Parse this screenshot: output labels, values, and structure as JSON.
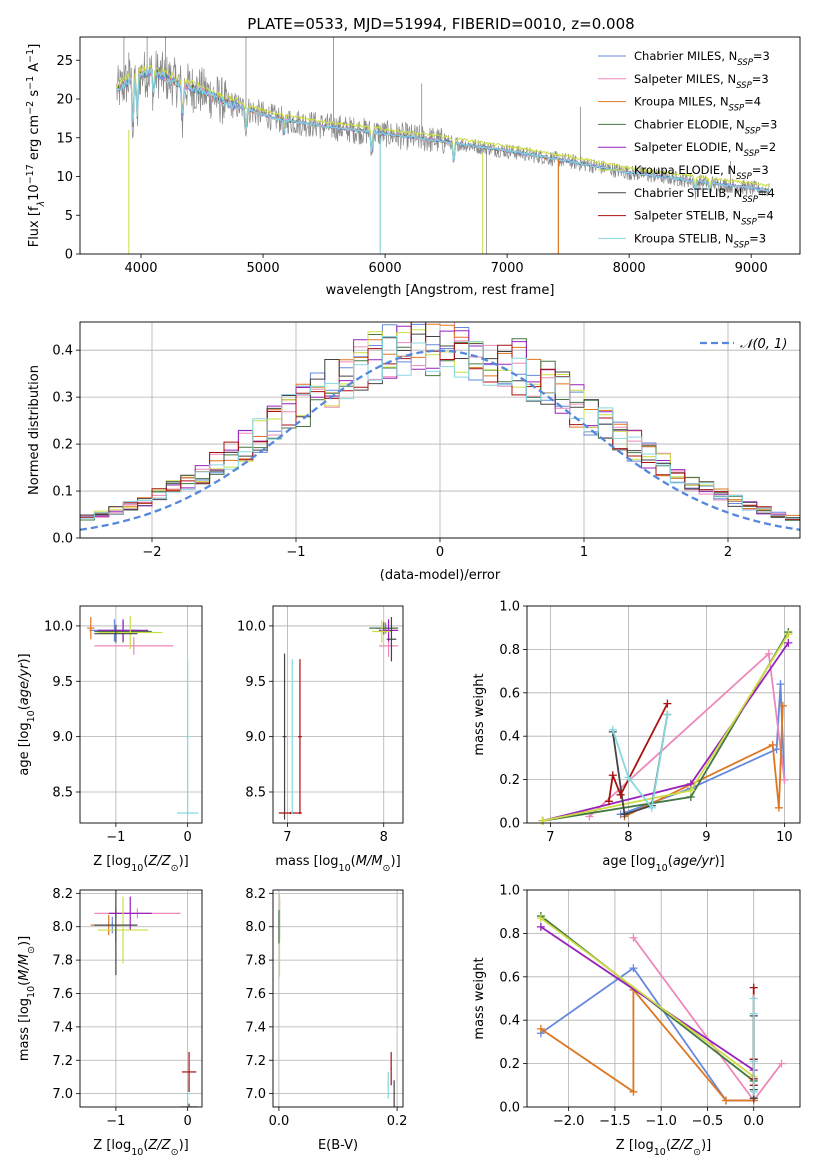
{
  "figure_title": "PLATE=0533, MJD=51994, FIBERID=0010, z=0.008",
  "colors": {
    "chabrier_miles": "#6688dd",
    "salpeter_miles": "#ee88bb",
    "kroupa_miles": "#dd7722",
    "chabrier_elodie": "#447744",
    "salpeter_elodie": "#9922bb",
    "kroupa_elodie": "#ccdd44",
    "chabrier_stelib": "#444444",
    "salpeter_stelib": "#aa1111",
    "kroupa_stelib": "#88d8e0",
    "data": "#888888",
    "normal": "#5588dd"
  },
  "legend": [
    {
      "text": "Chabrier MILES, N",
      "sub": "SSP",
      "tail": "=3",
      "color": "chabrier_miles"
    },
    {
      "text": "Salpeter MILES, N",
      "sub": "SSP",
      "tail": "=3",
      "color": "salpeter_miles"
    },
    {
      "text": "Kroupa MILES, N",
      "sub": "SSP",
      "tail": "=4",
      "color": "kroupa_miles"
    },
    {
      "text": "Chabrier ELODIE, N",
      "sub": "SSP",
      "tail": "=3",
      "color": "chabrier_elodie"
    },
    {
      "text": "Salpeter ELODIE, N",
      "sub": "SSP",
      "tail": "=2",
      "color": "salpeter_elodie"
    },
    {
      "text": "Kroupa ELODIE, N",
      "sub": "SSP",
      "tail": "=3",
      "color": "kroupa_elodie"
    },
    {
      "text": "Chabrier STELIB, N",
      "sub": "SSP",
      "tail": "=4",
      "color": "chabrier_stelib"
    },
    {
      "text": "Salpeter STELIB, N",
      "sub": "SSP",
      "tail": "=4",
      "color": "salpeter_stelib"
    },
    {
      "text": "Kroupa STELIB, N",
      "sub": "SSP",
      "tail": "=3",
      "color": "kroupa_stelib"
    }
  ],
  "chart_data": [
    {
      "id": "spectrum",
      "type": "line",
      "xlabel": "wavelength [Angstrom, rest frame]",
      "ylabel_parts": [
        "Flux [f",
        "λ",
        "10",
        "−17",
        " erg cm",
        "−2",
        " s",
        "−1",
        " A",
        "−1",
        "]"
      ],
      "xlim": [
        3500,
        9400
      ],
      "ylim": [
        0,
        28
      ],
      "xticks": [
        4000,
        5000,
        6000,
        7000,
        8000,
        9000
      ],
      "yticks": [
        0,
        5,
        10,
        15,
        20,
        25
      ],
      "continuum": [
        [
          3800,
          21
        ],
        [
          3950,
          23
        ],
        [
          4100,
          23.5
        ],
        [
          4300,
          22
        ],
        [
          4500,
          21
        ],
        [
          4700,
          19.5
        ],
        [
          4900,
          18.5
        ],
        [
          5100,
          17.5
        ],
        [
          5500,
          16.5
        ],
        [
          6000,
          15.5
        ],
        [
          6500,
          14.5
        ],
        [
          7000,
          13.3
        ],
        [
          7500,
          12
        ],
        [
          8000,
          10.5
        ],
        [
          8500,
          9.5
        ],
        [
          9000,
          8.5
        ],
        [
          9150,
          8.2
        ]
      ],
      "absorption_lines": [
        [
          3934,
          7
        ],
        [
          3969,
          6
        ],
        [
          4102,
          3
        ],
        [
          4340,
          5
        ],
        [
          4861,
          3
        ],
        [
          5175,
          2
        ],
        [
          5890,
          3
        ],
        [
          6563,
          3
        ],
        [
          8542,
          1.5
        ],
        [
          8662,
          1.5
        ]
      ],
      "data_spikes": [
        [
          3860,
          28
        ],
        [
          3900,
          26
        ],
        [
          4050,
          28
        ],
        [
          4200,
          28
        ],
        [
          4860,
          28
        ],
        [
          5577,
          28
        ],
        [
          5960,
          0.5
        ],
        [
          6300,
          22
        ],
        [
          6830,
          0
        ],
        [
          7420,
          0
        ],
        [
          7600,
          19
        ],
        [
          8830,
          12
        ],
        [
          9000,
          9
        ]
      ]
    },
    {
      "id": "residuals",
      "type": "line",
      "xlabel": "(data-model)/error",
      "ylabel": "Normed distribution",
      "xlim": [
        -2.5,
        2.5
      ],
      "ylim": [
        0,
        0.46
      ],
      "xticks": [
        -2,
        -1,
        0,
        1,
        2
      ],
      "xtick_labels": [
        "−2",
        "−1",
        "0",
        "1",
        "2"
      ],
      "yticks": [
        0,
        0.1,
        0.2,
        0.3,
        0.4
      ],
      "ytick_labels": [
        "0.0",
        "0.1",
        "0.2",
        "0.3",
        "0.4"
      ],
      "legend_label": "𝒩(0, 1)",
      "bin_width": 0.1
    },
    {
      "id": "age_vs_z",
      "type": "scatter",
      "xlabel_parts": [
        "Z [log",
        "10",
        "(",
        "Z/Z",
        "⊙",
        ")]"
      ],
      "ylabel_parts": [
        "age  [log",
        "10",
        "(",
        "age/yr",
        ")]"
      ],
      "xlim": [
        -1.5,
        0.2
      ],
      "ylim": [
        8.22,
        10.18
      ],
      "xticks": [
        -1,
        0
      ],
      "xtick_labels": [
        "−1",
        "0"
      ],
      "yticks": [
        8.5,
        9.0,
        9.5,
        10.0
      ],
      "ytick_labels": [
        "8.5",
        "9.0",
        "9.5",
        "10.0"
      ],
      "points": [
        {
          "x": -1.02,
          "y": 9.96,
          "xe": 0.35,
          "ye": 0.1,
          "c": "chabrier_miles"
        },
        {
          "x": -0.75,
          "y": 9.82,
          "xe": 0.55,
          "ye": 0.08,
          "c": "salpeter_miles"
        },
        {
          "x": -1.35,
          "y": 9.98,
          "xe": 0.05,
          "ye": 0.1,
          "c": "kroupa_miles"
        },
        {
          "x": -0.9,
          "y": 9.95,
          "xe": 0.4,
          "ye": 0.1,
          "c": "chabrier_elodie"
        },
        {
          "x": -0.9,
          "y": 9.96,
          "xe": 0.35,
          "ye": 0.1,
          "c": "salpeter_elodie"
        },
        {
          "x": -0.8,
          "y": 9.94,
          "xe": 0.45,
          "ye": 0.15,
          "c": "kroupa_elodie"
        },
        {
          "x": -1.0,
          "y": 9.93,
          "xe": 0.3,
          "ye": 0.08,
          "c": "chabrier_stelib"
        },
        {
          "x": 0.0,
          "y": 8.31,
          "xe": 0.15,
          "ye": 0.02,
          "c": "kroupa_stelib"
        },
        {
          "x": 0.0,
          "y": 9.0,
          "xe": 0.02,
          "ye": 0.7,
          "c": "kroupa_stelib"
        }
      ]
    },
    {
      "id": "age_vs_mass",
      "type": "scatter",
      "xlabel_parts": [
        "mass [log",
        "10",
        "(",
        "M/M",
        "⊙",
        ")]"
      ],
      "xlim": [
        6.85,
        8.2
      ],
      "ylim": [
        8.22,
        10.18
      ],
      "xticks": [
        7,
        8
      ],
      "xtick_labels": [
        "7",
        "8"
      ],
      "yticks": [
        8.5,
        9.0,
        9.5,
        10.0
      ],
      "ytick_labels": [
        "8.5",
        "9.0",
        "9.5",
        "10.0"
      ],
      "points": [
        {
          "x": 8.02,
          "y": 9.98,
          "xe": 0.1,
          "ye": 0.05,
          "c": "chabrier_miles"
        },
        {
          "x": 8.05,
          "y": 9.82,
          "xe": 0.1,
          "ye": 0.1,
          "c": "salpeter_miles"
        },
        {
          "x": 8.0,
          "y": 9.98,
          "xe": 0.05,
          "ye": 0.06,
          "c": "kroupa_miles"
        },
        {
          "x": 8.0,
          "y": 9.98,
          "xe": 0.15,
          "ye": 0.05,
          "c": "chabrier_elodie"
        },
        {
          "x": 8.05,
          "y": 9.96,
          "xe": 0.1,
          "ye": 0.1,
          "c": "salpeter_elodie"
        },
        {
          "x": 7.98,
          "y": 9.95,
          "xe": 0.1,
          "ye": 0.1,
          "c": "kroupa_elodie"
        },
        {
          "x": 8.08,
          "y": 9.88,
          "xe": 0.05,
          "ye": 0.2,
          "c": "chabrier_stelib"
        },
        {
          "x": 6.97,
          "y": 9.0,
          "xe": 0.02,
          "ye": 0.75,
          "c": "chabrier_stelib"
        },
        {
          "x": 7.13,
          "y": 9.0,
          "xe": 0.02,
          "ye": 0.7,
          "c": "salpeter_stelib"
        },
        {
          "x": 7.03,
          "y": 8.31,
          "xe": 0.12,
          "ye": 0.01,
          "c": "salpeter_stelib"
        },
        {
          "x": 7.05,
          "y": 9.0,
          "xe": 0.01,
          "ye": 0.7,
          "c": "kroupa_stelib"
        }
      ]
    },
    {
      "id": "weight_vs_age",
      "type": "line",
      "xlabel_parts": [
        "age  [log",
        "10",
        "(",
        "age/yr",
        ")]"
      ],
      "ylabel": "mass weight",
      "xlim": [
        6.7,
        10.2
      ],
      "ylim": [
        0,
        1
      ],
      "xticks": [
        7,
        8,
        9,
        10
      ],
      "xtick_labels": [
        "7",
        "8",
        "9",
        "10"
      ],
      "yticks": [
        0,
        0.2,
        0.4,
        0.6,
        0.8,
        1.0
      ],
      "ytick_labels": [
        "0.0",
        "0.2",
        "0.4",
        "0.6",
        "0.8",
        "1.0"
      ],
      "series": [
        {
          "c": "chabrier_miles",
          "pts": [
            [
              7.9,
              0.04
            ],
            [
              8.8,
              0.16
            ],
            [
              9.9,
              0.34
            ],
            [
              9.95,
              0.64
            ],
            [
              10.0,
              0.2
            ]
          ]
        },
        {
          "c": "salpeter_miles",
          "pts": [
            [
              7.5,
              0.03
            ],
            [
              9.8,
              0.78
            ],
            [
              10.0,
              0.2
            ]
          ]
        },
        {
          "c": "kroupa_miles",
          "pts": [
            [
              7.95,
              0.03
            ],
            [
              9.85,
              0.36
            ],
            [
              9.93,
              0.07
            ],
            [
              9.98,
              0.54
            ]
          ]
        },
        {
          "c": "chabrier_elodie",
          "pts": [
            [
              6.9,
              0.01
            ],
            [
              8.8,
              0.12
            ],
            [
              10.05,
              0.88
            ]
          ]
        },
        {
          "c": "salpeter_elodie",
          "pts": [
            [
              6.9,
              0.01
            ],
            [
              8.8,
              0.18
            ],
            [
              10.05,
              0.83
            ]
          ]
        },
        {
          "c": "kroupa_elodie",
          "pts": [
            [
              6.9,
              0.01
            ],
            [
              8.8,
              0.15
            ],
            [
              10.05,
              0.87
            ]
          ]
        },
        {
          "c": "chabrier_stelib",
          "pts": [
            [
              7.8,
              0.42
            ],
            [
              7.95,
              0.04
            ],
            [
              8.3,
              0.08
            ],
            [
              8.5,
              0.5
            ]
          ]
        },
        {
          "c": "salpeter_stelib",
          "pts": [
            [
              7.75,
              0.1
            ],
            [
              7.8,
              0.22
            ],
            [
              7.9,
              0.13
            ],
            [
              8.5,
              0.55
            ]
          ]
        },
        {
          "c": "kroupa_stelib",
          "pts": [
            [
              7.8,
              0.43
            ],
            [
              8.0,
              0.21
            ],
            [
              8.3,
              0.07
            ],
            [
              8.5,
              0.5
            ]
          ]
        }
      ]
    },
    {
      "id": "mass_vs_z",
      "type": "scatter",
      "xlabel_parts": [
        "Z [log",
        "10",
        "(",
        "Z/Z",
        "⊙",
        ")]"
      ],
      "ylabel_parts": [
        "mass [log",
        "10",
        "(",
        "M/M",
        "⊙",
        ")]"
      ],
      "xlim": [
        -1.5,
        0.2
      ],
      "ylim": [
        6.92,
        8.22
      ],
      "xticks": [
        -1,
        0
      ],
      "xtick_labels": [
        "−1",
        "0"
      ],
      "yticks": [
        7.0,
        7.2,
        7.4,
        7.6,
        7.8,
        8.0,
        8.2
      ],
      "ytick_labels": [
        "7.0",
        "7.2",
        "7.4",
        "7.6",
        "7.8",
        "8.0",
        "8.2"
      ],
      "points": [
        {
          "x": -1.05,
          "y": 8.01,
          "xe": 0.3,
          "ye": 0.05,
          "c": "chabrier_miles"
        },
        {
          "x": -0.7,
          "y": 8.08,
          "xe": 0.6,
          "ye": 0.03,
          "c": "salpeter_miles"
        },
        {
          "x": -1.1,
          "y": 8.01,
          "xe": 0.25,
          "ye": 0.06,
          "c": "kroupa_miles"
        },
        {
          "x": -1.0,
          "y": 8.01,
          "xe": 0.3,
          "ye": 0.1,
          "c": "chabrier_elodie"
        },
        {
          "x": -0.8,
          "y": 8.08,
          "xe": 0.3,
          "ye": 0.1,
          "c": "salpeter_elodie"
        },
        {
          "x": -0.9,
          "y": 7.98,
          "xe": 0.35,
          "ye": 0.2,
          "c": "kroupa_elodie"
        },
        {
          "x": -1.0,
          "y": 8.01,
          "xe": 0.3,
          "ye": 0.3,
          "c": "chabrier_stelib"
        },
        {
          "x": 0.02,
          "y": 7.13,
          "xe": 0.1,
          "ye": 0.12,
          "c": "salpeter_stelib"
        },
        {
          "x": 0.02,
          "y": 6.92,
          "xe": 0.12,
          "ye": 0.02,
          "c": "chabrier_stelib"
        },
        {
          "x": 0.0,
          "y": 7.0,
          "xe": 0.03,
          "ye": 0.08,
          "c": "kroupa_stelib"
        }
      ]
    },
    {
      "id": "mass_vs_ebv",
      "type": "scatter",
      "xlabel": "E(B-V)",
      "xlim": [
        -0.01,
        0.21
      ],
      "ylim": [
        6.92,
        8.22
      ],
      "xticks": [
        0,
        0.2
      ],
      "xtick_labels": [
        "0.0",
        "0.2"
      ],
      "yticks": [
        7.0,
        7.2,
        7.4,
        7.6,
        7.8,
        8.0,
        8.2
      ],
      "ytick_labels": [
        "7.0",
        "7.2",
        "7.4",
        "7.6",
        "7.8",
        "8.0",
        "8.2"
      ],
      "points": [
        {
          "x": 0.001,
          "y": 8.05,
          "xe": 0.001,
          "ye": 0.12,
          "c": "salpeter_elodie"
        },
        {
          "x": 0.001,
          "y": 7.95,
          "xe": 0.001,
          "ye": 0.25,
          "c": "kroupa_elodie"
        },
        {
          "x": 0.0,
          "y": 8.0,
          "xe": 0.001,
          "ye": 0.1,
          "c": "chabrier_elodie"
        },
        {
          "x": 0.19,
          "y": 7.15,
          "xe": 0.001,
          "ye": 0.1,
          "c": "salpeter_stelib"
        },
        {
          "x": 0.195,
          "y": 7.0,
          "xe": 0.001,
          "ye": 0.08,
          "c": "chabrier_stelib"
        },
        {
          "x": 0.185,
          "y": 7.05,
          "xe": 0.001,
          "ye": 0.08,
          "c": "kroupa_stelib"
        }
      ]
    },
    {
      "id": "weight_vs_z",
      "type": "line",
      "xlabel_parts": [
        "Z [log",
        "10",
        "(",
        "Z/Z",
        "⊙",
        ")]"
      ],
      "ylabel": "mass weight",
      "xlim": [
        -2.45,
        0.5
      ],
      "ylim": [
        0,
        1
      ],
      "xticks": [
        -2.0,
        -1.5,
        -1.0,
        -0.5,
        0.0
      ],
      "xtick_labels": [
        "−2.0",
        "−1.5",
        "−1.0",
        "−0.5",
        "0.0"
      ],
      "yticks": [
        0,
        0.2,
        0.4,
        0.6,
        0.8,
        1.0
      ],
      "ytick_labels": [
        "0.0",
        "0.2",
        "0.4",
        "0.6",
        "0.8",
        "1.0"
      ],
      "series": [
        {
          "c": "chabrier_miles",
          "pts": [
            [
              -2.3,
              0.34
            ],
            [
              -1.3,
              0.64
            ],
            [
              -0.3,
              0.03
            ],
            [
              0.0,
              0.03
            ]
          ]
        },
        {
          "c": "salpeter_miles",
          "pts": [
            [
              -1.3,
              0.78
            ],
            [
              0.0,
              0.03
            ],
            [
              0.3,
              0.2
            ]
          ]
        },
        {
          "c": "kroupa_miles",
          "pts": [
            [
              -2.3,
              0.36
            ],
            [
              -1.3,
              0.07
            ],
            [
              -1.3,
              0.54
            ],
            [
              -0.3,
              0.03
            ],
            [
              0.0,
              0.03
            ]
          ]
        },
        {
          "c": "chabrier_elodie",
          "pts": [
            [
              -2.3,
              0.88
            ],
            [
              0.0,
              0.12
            ]
          ]
        },
        {
          "c": "salpeter_elodie",
          "pts": [
            [
              -2.3,
              0.83
            ],
            [
              0.0,
              0.17
            ]
          ]
        },
        {
          "c": "kroupa_elodie",
          "pts": [
            [
              -2.3,
              0.87
            ],
            [
              0.0,
              0.14
            ]
          ]
        },
        {
          "c": "chabrier_stelib",
          "pts": [
            [
              0.0,
              0.04
            ],
            [
              0.0,
              0.42
            ],
            [
              0.0,
              0.08
            ],
            [
              0.0,
              0.22
            ]
          ]
        },
        {
          "c": "salpeter_stelib",
          "pts": [
            [
              0.0,
              0.1
            ],
            [
              0.0,
              0.22
            ],
            [
              0.0,
              0.13
            ],
            [
              0.0,
              0.55
            ]
          ]
        },
        {
          "c": "kroupa_stelib",
          "pts": [
            [
              0.0,
              0.07
            ],
            [
              0.0,
              0.5
            ],
            [
              0.0,
              0.21
            ],
            [
              0.0,
              0.43
            ]
          ]
        }
      ]
    }
  ]
}
